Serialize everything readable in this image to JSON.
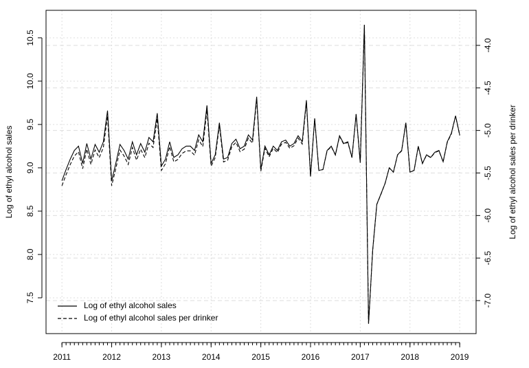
{
  "chart_data": {
    "type": "line",
    "xlabel": null,
    "ylabel": "Log of ethyl alcohol sales",
    "y2label": "Log of ethyl alcohol sales per drinker",
    "x": [
      2011,
      2011.083,
      2011.167,
      2011.25,
      2011.333,
      2011.417,
      2011.5,
      2011.583,
      2011.667,
      2011.75,
      2011.833,
      2011.917,
      2012,
      2012.083,
      2012.167,
      2012.25,
      2012.333,
      2012.417,
      2012.5,
      2012.583,
      2012.667,
      2012.75,
      2012.833,
      2012.917,
      2013,
      2013.083,
      2013.167,
      2013.25,
      2013.333,
      2013.417,
      2013.5,
      2013.583,
      2013.667,
      2013.75,
      2013.833,
      2013.917,
      2014,
      2014.083,
      2014.167,
      2014.25,
      2014.333,
      2014.417,
      2014.5,
      2014.583,
      2014.667,
      2014.75,
      2014.833,
      2014.917,
      2015,
      2015.083,
      2015.167,
      2015.25,
      2015.333,
      2015.417,
      2015.5,
      2015.583,
      2015.667,
      2015.75,
      2015.833,
      2015.917,
      2016,
      2016.083,
      2016.167,
      2016.25,
      2016.333,
      2016.417,
      2016.5,
      2016.583,
      2016.667,
      2016.75,
      2016.833,
      2016.917,
      2017,
      2017.083,
      2017.167,
      2017.25,
      2017.333,
      2017.417,
      2017.5,
      2017.583,
      2017.667,
      2017.75,
      2017.833,
      2017.917,
      2018,
      2018.083,
      2018.167,
      2018.25,
      2018.333,
      2018.417,
      2018.5,
      2018.583,
      2018.667,
      2018.75,
      2018.833,
      2018.917,
      2019
    ],
    "series": [
      {
        "name": "Log of ethyl alcohol sales",
        "color": "#000000",
        "dash": "solid",
        "axis": "y",
        "values": [
          8.85,
          8.98,
          9.1,
          9.2,
          9.25,
          9.05,
          9.28,
          9.1,
          9.27,
          9.18,
          9.3,
          9.66,
          8.85,
          9.05,
          9.27,
          9.2,
          9.1,
          9.3,
          9.15,
          9.28,
          9.18,
          9.35,
          9.3,
          9.63,
          9.02,
          9.1,
          9.3,
          9.12,
          9.15,
          9.22,
          9.25,
          9.25,
          9.2,
          9.38,
          9.3,
          9.72,
          9.05,
          9.15,
          9.52,
          9.1,
          9.12,
          9.28,
          9.33,
          9.22,
          9.25,
          9.38,
          9.32,
          9.82,
          8.98,
          9.25,
          9.15,
          9.25,
          9.2,
          9.3,
          9.32,
          9.25,
          9.28,
          9.37,
          9.3,
          9.78,
          8.9,
          9.57,
          8.97,
          8.98,
          9.2,
          9.25,
          9.15,
          9.37,
          9.28,
          9.3,
          9.12,
          9.62,
          9.06,
          10.65,
          7.2,
          8.05,
          8.58,
          8.7,
          8.82,
          9.0,
          8.95,
          9.15,
          9.2,
          9.52,
          8.95,
          8.97,
          9.25,
          9.05,
          9.15,
          9.12,
          9.18,
          9.2,
          9.07,
          9.3,
          9.4,
          9.6,
          9.38
        ]
      },
      {
        "name": "Log of ethyl alcohol sales per drinker",
        "color": "#000000",
        "dash": "dashed",
        "axis": "y2",
        "values": [
          -5.65,
          -5.52,
          -5.4,
          -5.3,
          -5.25,
          -5.45,
          -5.22,
          -5.4,
          -5.23,
          -5.32,
          -5.2,
          -4.83,
          -5.65,
          -5.45,
          -5.23,
          -5.3,
          -5.4,
          -5.2,
          -5.35,
          -5.22,
          -5.32,
          -5.15,
          -5.2,
          -4.86,
          -5.47,
          -5.39,
          -5.19,
          -5.37,
          -5.34,
          -5.27,
          -5.24,
          -5.24,
          -5.29,
          -5.11,
          -5.19,
          -4.76,
          -5.42,
          -5.32,
          -4.94,
          -5.37,
          -5.35,
          -5.19,
          -5.14,
          -5.25,
          -5.22,
          -5.09,
          -5.15,
          -4.63,
          -5.48,
          -5.21,
          -5.31,
          -5.21,
          -5.26,
          -5.16,
          -5.14,
          -5.21,
          -5.18,
          -5.09,
          -5.16,
          -4.67,
          -5.54,
          -4.86,
          -5.47,
          -5.46,
          -5.24,
          -5.19,
          -5.29,
          -5.07,
          -5.16,
          -5.14,
          -5.32,
          -4.81,
          -5.38,
          -3.76,
          -7.27,
          -6.41,
          -5.87,
          -5.75,
          -5.62,
          -5.44,
          -5.49,
          -5.29,
          -5.24,
          -4.91,
          -5.49,
          -5.47,
          -5.19,
          -5.39,
          -5.29,
          -5.32,
          -5.26,
          -5.24,
          -5.37,
          -5.14,
          -5.04,
          -4.83,
          -5.06
        ]
      }
    ],
    "xlim": [
      2010.68,
      2019.33
    ],
    "xticks": [
      2011,
      2012,
      2013,
      2014,
      2015,
      2016,
      2017,
      2018,
      2019
    ],
    "ylim": [
      7.087,
      10.817
    ],
    "yticks": [
      7.5,
      {
        "value": 8,
        "label": "8.0"
      },
      8.5,
      {
        "value": 9,
        "label": "9.0"
      },
      9.5,
      {
        "value": 10,
        "label": "10.0"
      },
      10.5
    ],
    "y2lim": [
      -7.388,
      -3.588
    ],
    "y2ticks": [
      {
        "value": -7,
        "label": "-7.0"
      },
      -6.5,
      {
        "value": -6,
        "label": "-6.0"
      },
      -5.5,
      {
        "value": -5,
        "label": "-5.0"
      },
      -4.5,
      {
        "value": -4,
        "label": "-4.0"
      }
    ],
    "grid": true,
    "legend": "bottomleft"
  }
}
